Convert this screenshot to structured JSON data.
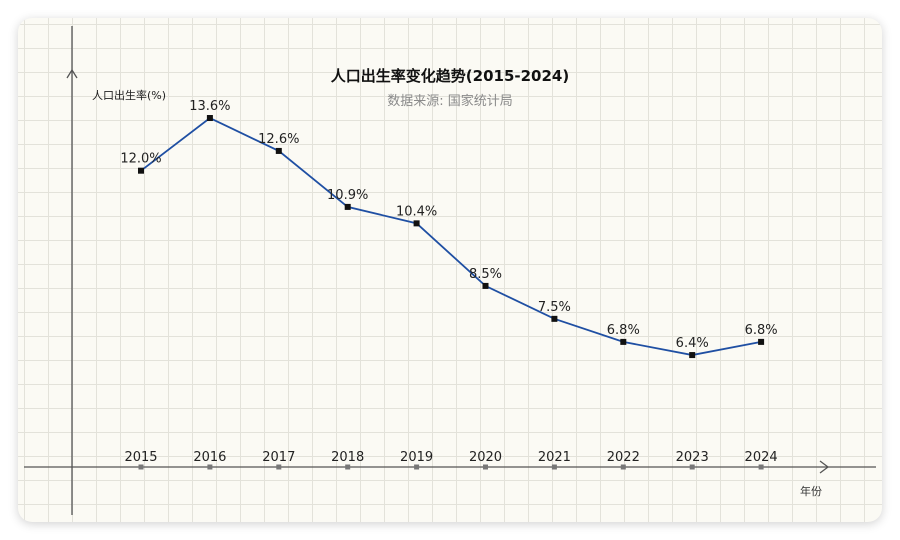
{
  "chart_data": {
    "type": "line",
    "title": "人口出生率变化趋势(2015-2024)",
    "subtitle": "数据来源: 国家统计局",
    "ylabel": "人口出生率(%)",
    "xlabel": "年份",
    "categories": [
      "2015",
      "2016",
      "2017",
      "2018",
      "2019",
      "2020",
      "2021",
      "2022",
      "2023",
      "2024"
    ],
    "series": [
      {
        "values": [
          12.0,
          13.6,
          12.6,
          10.9,
          10.4,
          8.5,
          7.5,
          6.8,
          6.4,
          6.8
        ],
        "labels": [
          "12.0%",
          "13.6%",
          "12.6%",
          "10.9%",
          "10.4%",
          "8.5%",
          "7.5%",
          "6.8%",
          "6.4%",
          "6.8%"
        ]
      }
    ],
    "ylim": [
      3,
      16
    ],
    "grid": true,
    "colors": {
      "line": "#1f4fa3",
      "marker": "#111111",
      "axis": "#555555"
    }
  }
}
